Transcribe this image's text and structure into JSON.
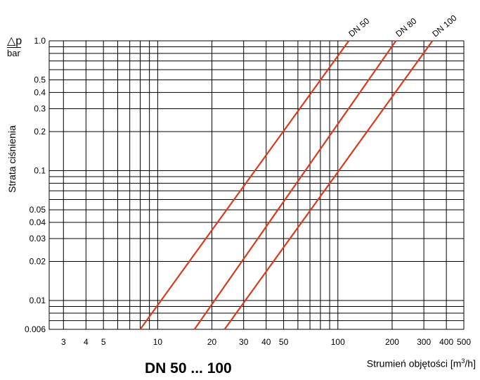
{
  "chart_data": {
    "type": "line",
    "title": "DN 50 ... 100",
    "ylabel": "Strata ciśnienia",
    "ylabel_symbol": "△p",
    "ylabel_unit": "bar",
    "xlabel_prefix": "Strumień objętości [m",
    "xlabel_sup": "3",
    "xlabel_suffix": "/h]",
    "x_scale": "log",
    "y_scale": "log",
    "xlim": [
      2.5,
      500
    ],
    "ylim": [
      0.006,
      1.0
    ],
    "grid": true,
    "x_tick_labels": [
      "3",
      "4",
      "5",
      "10",
      "20",
      "30",
      "40",
      "50",
      "100",
      "200",
      "300",
      "400",
      "500"
    ],
    "y_tick_labels": [
      "1.0",
      "0.5",
      "0.4",
      "0.3",
      "0.2",
      "0.1",
      "0.05",
      "0.04",
      "0.03",
      "0.02",
      "0.01",
      "0.006"
    ],
    "series": [
      {
        "name": "DN 50",
        "color": "#d93a1e",
        "x": [
          8,
          115
        ],
        "y": [
          0.006,
          1.0
        ]
      },
      {
        "name": "DN 80",
        "color": "#d93a1e",
        "x": [
          16,
          210
        ],
        "y": [
          0.006,
          1.0
        ]
      },
      {
        "name": "DN 100",
        "color": "#d93a1e",
        "x": [
          23.5,
          335
        ],
        "y": [
          0.006,
          1.0
        ]
      }
    ]
  }
}
